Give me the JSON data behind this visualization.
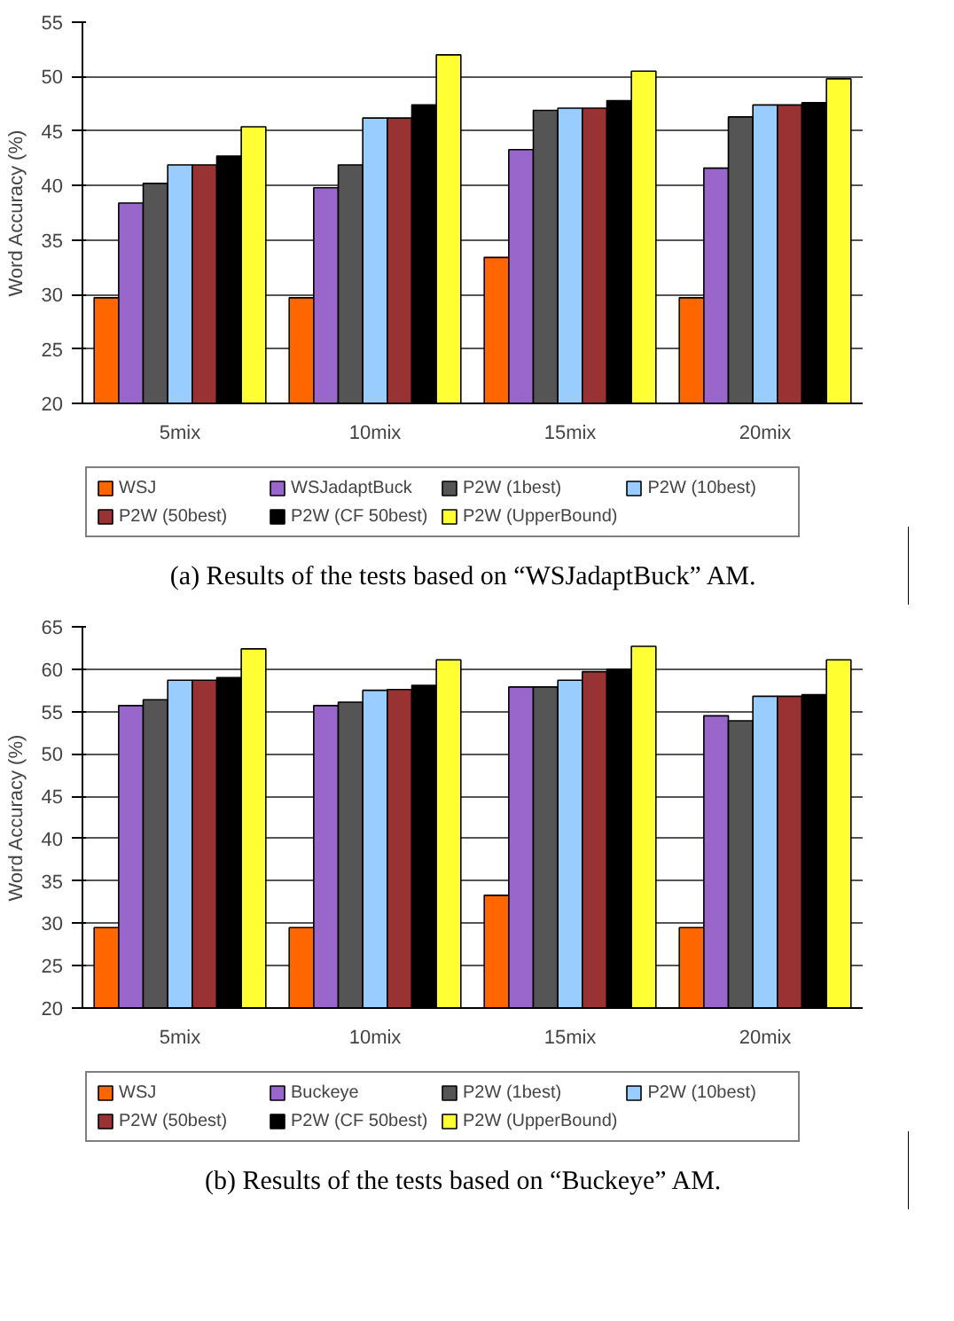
{
  "chart_data": [
    {
      "type": "bar",
      "ylabel": "Word Accuracy (%)",
      "categories": [
        "5mix",
        "10mix",
        "15mix",
        "20mix"
      ],
      "ylim": [
        20,
        55
      ],
      "yticks": [
        20,
        25,
        30,
        35,
        40,
        45,
        50,
        55
      ],
      "grid": "y",
      "legend": "bottom",
      "annotations": [
        "(a) Results of the tests based on “WSJadaptBuck” AM."
      ],
      "series": [
        {
          "name": "WSJ",
          "color": "#ff6600",
          "values": [
            29.7,
            29.7,
            33.4,
            29.7
          ]
        },
        {
          "name": "WSJadaptBuck",
          "color": "#9966cc",
          "values": [
            38.4,
            39.8,
            43.3,
            41.6
          ]
        },
        {
          "name": "P2W (1best)",
          "color": "#555555",
          "values": [
            40.2,
            41.9,
            46.9,
            46.3
          ]
        },
        {
          "name": "P2W (10best)",
          "color": "#99ccff",
          "values": [
            41.9,
            46.2,
            47.1,
            47.4
          ]
        },
        {
          "name": "P2W (50best)",
          "color": "#993333",
          "values": [
            41.9,
            46.2,
            47.1,
            47.4
          ]
        },
        {
          "name": "P2W (CF 50best)",
          "color": "#000000",
          "values": [
            42.7,
            47.4,
            47.8,
            47.6
          ]
        },
        {
          "name": "P2W (UpperBound)",
          "color": "#ffff33",
          "values": [
            45.4,
            52.0,
            50.5,
            49.8
          ]
        }
      ]
    },
    {
      "type": "bar",
      "ylabel": "Word Accuracy (%)",
      "categories": [
        "5mix",
        "10mix",
        "15mix",
        "20mix"
      ],
      "ylim": [
        20,
        65
      ],
      "yticks": [
        20,
        25,
        30,
        35,
        40,
        45,
        50,
        55,
        60,
        65
      ],
      "grid": "y",
      "legend": "bottom",
      "annotations": [
        "(b) Results of the tests based on “Buckeye” AM."
      ],
      "series": [
        {
          "name": "WSJ",
          "color": "#ff6600",
          "values": [
            29.5,
            29.5,
            33.3,
            29.5
          ]
        },
        {
          "name": "Buckeye",
          "color": "#9966cc",
          "values": [
            55.7,
            55.7,
            57.9,
            54.5
          ]
        },
        {
          "name": "P2W (1best)",
          "color": "#555555",
          "values": [
            56.4,
            56.1,
            57.9,
            53.9
          ]
        },
        {
          "name": "P2W (10best)",
          "color": "#99ccff",
          "values": [
            58.7,
            57.5,
            58.7,
            56.8
          ]
        },
        {
          "name": "P2W (50best)",
          "color": "#993333",
          "values": [
            58.7,
            57.6,
            59.7,
            56.8
          ]
        },
        {
          "name": "P2W (CF 50best)",
          "color": "#000000",
          "values": [
            59.0,
            58.1,
            60.0,
            57.0
          ]
        },
        {
          "name": "P2W (UpperBound)",
          "color": "#ffff33",
          "values": [
            62.4,
            61.1,
            62.7,
            61.1
          ]
        }
      ]
    }
  ]
}
